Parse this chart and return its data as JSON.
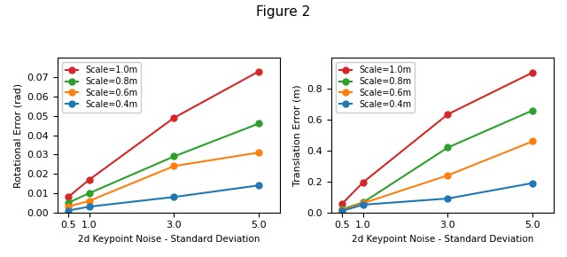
{
  "title": "Figure 2",
  "x_values": [
    0.5,
    1.0,
    3.0,
    5.0
  ],
  "xlabel": "2d Keypoint Noise - Standard Deviation",
  "left_ylabel": "Rotational Error (rad)",
  "right_ylabel": "Translation Error (m)",
  "series_labels": [
    "Scale=1.0m",
    "Scale=0.8m",
    "Scale=0.6m",
    "Scale=0.4m"
  ],
  "series_colors": [
    "#d62728",
    "#2ca02c",
    "#ff7f0e",
    "#1f77b4"
  ],
  "rot_data": [
    [
      0.008,
      0.017,
      0.049,
      0.073
    ],
    [
      0.005,
      0.01,
      0.029,
      0.046
    ],
    [
      0.003,
      0.006,
      0.024,
      0.031
    ],
    [
      0.001,
      0.003,
      0.008,
      0.014
    ]
  ],
  "trans_data": [
    [
      0.055,
      0.195,
      0.635,
      0.905
    ],
    [
      0.02,
      0.065,
      0.42,
      0.66
    ],
    [
      0.015,
      0.06,
      0.24,
      0.46
    ],
    [
      0.01,
      0.05,
      0.09,
      0.19
    ]
  ],
  "rot_ylim": [
    0,
    0.08
  ],
  "trans_ylim": [
    0,
    1.0
  ],
  "rot_yticks": [
    0.0,
    0.01,
    0.02,
    0.03,
    0.04,
    0.05,
    0.06,
    0.07
  ],
  "trans_yticks": [
    0.0,
    0.2,
    0.4,
    0.6,
    0.8
  ],
  "marker": "o",
  "linewidth": 1.5,
  "markersize": 5
}
